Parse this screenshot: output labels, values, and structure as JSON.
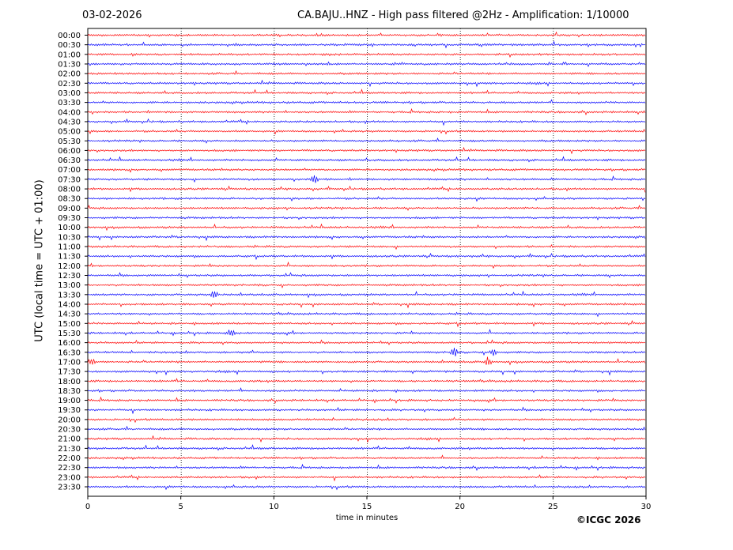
{
  "header": {
    "date": "03-02-2026",
    "title": "CA.BAJU..HNZ - High pass filtered @2Hz - Amplification: 1/10000"
  },
  "copyright": "©ICGC 2026",
  "chart_data": {
    "type": "line",
    "title": "CA.BAJU..HNZ - High pass filtered @2Hz - Amplification: 1/10000",
    "xlabel": "time in minutes",
    "ylabel": "UTC (local time = UTC + 01:00)",
    "xlim": [
      0,
      30
    ],
    "xticks": [
      0,
      5,
      10,
      15,
      20,
      25,
      30
    ],
    "grid": "vertical dotted at every 5 minutes",
    "yticks": [
      "00:00",
      "00:30",
      "01:00",
      "01:30",
      "02:00",
      "02:30",
      "03:00",
      "03:30",
      "04:00",
      "04:30",
      "05:00",
      "05:30",
      "06:00",
      "06:30",
      "07:00",
      "07:30",
      "08:00",
      "08:30",
      "09:00",
      "09:30",
      "10:00",
      "10:30",
      "11:00",
      "11:30",
      "12:00",
      "12:30",
      "13:00",
      "13:30",
      "14:00",
      "14:30",
      "15:00",
      "15:30",
      "16:00",
      "16:30",
      "17:00",
      "17:30",
      "18:00",
      "18:30",
      "19:00",
      "19:30",
      "20:00",
      "20:30",
      "21:00",
      "21:30",
      "22:00",
      "22:30",
      "23:00",
      "23:30"
    ],
    "trace_colors": [
      "#ff0000",
      "#0000ff"
    ],
    "events": [
      {
        "row": "07:30",
        "minute": 12.2
      },
      {
        "row": "13:30",
        "minute": 6.8
      },
      {
        "row": "15:30",
        "minute": 7.7
      },
      {
        "row": "16:30",
        "minute": 19.7
      },
      {
        "row": "16:30",
        "minute": 21.8
      },
      {
        "row": "17:00",
        "minute": 0.2
      },
      {
        "row": "17:00",
        "minute": 21.5
      }
    ]
  }
}
